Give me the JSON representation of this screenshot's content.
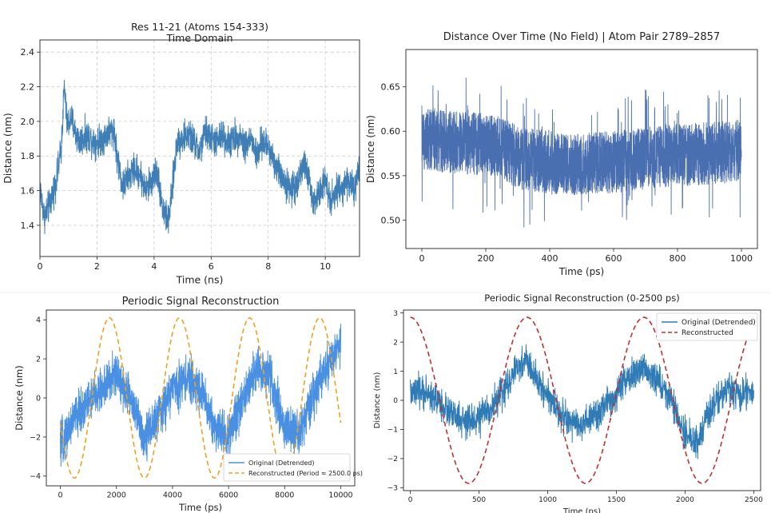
{
  "figure": {
    "description": "Four molecular-dynamics distance plots"
  },
  "chart_data": [
    {
      "id": "p1",
      "type": "line",
      "title": "Res 11-21 (Atoms 154-333)",
      "subtitle": "Time Domain",
      "xlabel": "Time (ns)",
      "ylabel": "Distance (nm)",
      "xlim": [
        0,
        11.2
      ],
      "ylim": [
        1.22,
        2.47
      ],
      "xticks": [
        0,
        2,
        4,
        6,
        8,
        10
      ],
      "yticks": [
        1.4,
        1.6,
        1.8,
        2.0,
        2.2,
        2.4
      ],
      "xtick_labels": [
        "0",
        "2",
        "4",
        "6",
        "8",
        "10"
      ],
      "ytick_labels": [
        "1.4",
        "1.6",
        "1.8",
        "2.0",
        "2.2",
        "2.4"
      ],
      "grid": true,
      "color": "#3f7fb5",
      "series": [
        {
          "name": "distance",
          "x": [
            0.0,
            0.15,
            0.3,
            0.45,
            0.6,
            0.75,
            0.85,
            0.95,
            1.1,
            1.25,
            1.4,
            1.6,
            1.8,
            2.0,
            2.2,
            2.4,
            2.6,
            2.7,
            2.9,
            3.1,
            3.3,
            3.5,
            3.7,
            3.9,
            4.1,
            4.3,
            4.5,
            4.6,
            4.8,
            5.0,
            5.2,
            5.4,
            5.6,
            5.8,
            6.0,
            6.2,
            6.4,
            6.6,
            6.8,
            7.0,
            7.2,
            7.4,
            7.6,
            7.8,
            8.0,
            8.2,
            8.4,
            8.6,
            8.8,
            9.0,
            9.2,
            9.4,
            9.6,
            9.8,
            10.0,
            10.2,
            10.4,
            10.6,
            10.8,
            11.0,
            11.2
          ],
          "y": [
            1.62,
            1.45,
            1.5,
            1.58,
            1.68,
            1.85,
            2.2,
            1.98,
            2.02,
            1.93,
            1.88,
            1.92,
            1.9,
            1.88,
            1.9,
            1.94,
            1.95,
            1.8,
            1.62,
            1.68,
            1.72,
            1.7,
            1.6,
            1.65,
            1.72,
            1.5,
            1.42,
            1.55,
            1.88,
            1.9,
            1.92,
            1.88,
            1.82,
            1.94,
            1.9,
            1.88,
            1.92,
            1.88,
            1.9,
            1.92,
            1.86,
            1.9,
            1.8,
            1.88,
            1.85,
            1.78,
            1.7,
            1.65,
            1.6,
            1.64,
            1.75,
            1.7,
            1.5,
            1.62,
            1.66,
            1.55,
            1.6,
            1.62,
            1.66,
            1.6,
            1.7
          ]
        }
      ]
    },
    {
      "id": "p2",
      "type": "line",
      "title": "Distance Over Time (No Field) | Atom Pair 2789–2857",
      "xlabel": "Time (ps)",
      "ylabel": "Distance (nm)",
      "xlim": [
        -50,
        1050
      ],
      "ylim": [
        0.468,
        0.692
      ],
      "xticks": [
        0,
        200,
        400,
        600,
        800,
        1000
      ],
      "yticks": [
        0.5,
        0.55,
        0.6,
        0.65
      ],
      "xtick_labels": [
        "0",
        "200",
        "400",
        "600",
        "800",
        "1000"
      ],
      "ytick_labels": [
        "0.50",
        "0.55",
        "0.60",
        "0.65"
      ],
      "grid": false,
      "color": "#4a6fb0",
      "series": [
        {
          "name": "distance",
          "x": [
            0,
            100,
            200,
            260,
            300,
            400,
            500,
            600,
            700,
            800,
            900,
            1000
          ],
          "y": [
            0.59,
            0.588,
            0.585,
            0.58,
            0.57,
            0.565,
            0.563,
            0.565,
            0.57,
            0.573,
            0.575,
            0.578
          ]
        }
      ],
      "noise_amplitude": 0.035
    },
    {
      "id": "p3",
      "type": "line",
      "title": "Periodic Signal Reconstruction",
      "xlabel": "Time (ps)",
      "ylabel": "Distance (nm)",
      "xlim": [
        -500,
        10500
      ],
      "ylim": [
        -4.5,
        4.5
      ],
      "xticks": [
        0,
        2000,
        4000,
        6000,
        8000,
        10000
      ],
      "yticks": [
        -4,
        -2,
        0,
        2,
        4
      ],
      "xtick_labels": [
        "0",
        "2000",
        "4000",
        "6000",
        "8000",
        "10000"
      ],
      "ytick_labels": [
        "−4",
        "−2",
        "0",
        "2",
        "4"
      ],
      "grid": false,
      "legend_position": "lower-right",
      "series": [
        {
          "name": "Original (Detrended)",
          "color": "#4a90e2",
          "x": [
            0,
            500,
            1000,
            1500,
            2000,
            2500,
            3000,
            3500,
            4000,
            4500,
            5000,
            5500,
            6000,
            6500,
            7000,
            7500,
            8000,
            8500,
            9000,
            9500,
            10000
          ],
          "y": [
            -2.5,
            -1.0,
            -0.2,
            0.5,
            1.2,
            0.0,
            -2.0,
            -1.0,
            0.5,
            1.0,
            0.5,
            -1.5,
            -2.0,
            0.0,
            1.5,
            1.0,
            -1.5,
            -2.0,
            0.0,
            1.5,
            2.8
          ]
        },
        {
          "name": "Reconstructed (Period ≈ 2500.0 ps)",
          "color": "#f0a020",
          "dashed": true,
          "amplitude": 4.1,
          "period": 2500,
          "peak_at": 1750,
          "x_start": 0,
          "x_end": 10000
        }
      ]
    },
    {
      "id": "p4",
      "type": "line",
      "title": "Periodic Signal Reconstruction (0-2500 ps)",
      "xlabel": "Time (ps)",
      "ylabel": "Distance (nm)",
      "xlim": [
        -50,
        2550
      ],
      "ylim": [
        -3.1,
        3.1
      ],
      "xticks": [
        0,
        500,
        1000,
        1500,
        2000,
        2500
      ],
      "yticks": [
        -3,
        -2,
        -1,
        0,
        1,
        2,
        3
      ],
      "xtick_labels": [
        "0",
        "500",
        "1000",
        "1500",
        "2000",
        "2500"
      ],
      "ytick_labels": [
        "−3",
        "−2",
        "−1",
        "0",
        "1",
        "2",
        "3"
      ],
      "grid": false,
      "legend_position": "upper-right",
      "series": [
        {
          "name": "Original (Detrended)",
          "color": "#2f7bb5",
          "x": [
            0,
            100,
            200,
            300,
            400,
            500,
            600,
            700,
            800,
            850,
            900,
            1000,
            1100,
            1200,
            1300,
            1400,
            1500,
            1600,
            1700,
            1800,
            1900,
            2000,
            2100,
            2200,
            2300,
            2400,
            2500
          ],
          "y": [
            0.2,
            0.3,
            0.0,
            -0.5,
            -0.8,
            -0.6,
            -0.2,
            0.5,
            1.2,
            1.4,
            0.8,
            0.2,
            -0.5,
            -0.9,
            -0.7,
            -0.3,
            0.2,
            0.8,
            1.1,
            0.7,
            0.0,
            -1.2,
            -1.4,
            -0.2,
            0.4,
            0.2,
            0.3
          ]
        },
        {
          "name": "Reconstructed",
          "color": "#c03030",
          "dashed": true,
          "amplitude": 2.85,
          "period": 850,
          "peak_at": 0,
          "x_start": 0,
          "x_end": 2500
        }
      ]
    }
  ]
}
